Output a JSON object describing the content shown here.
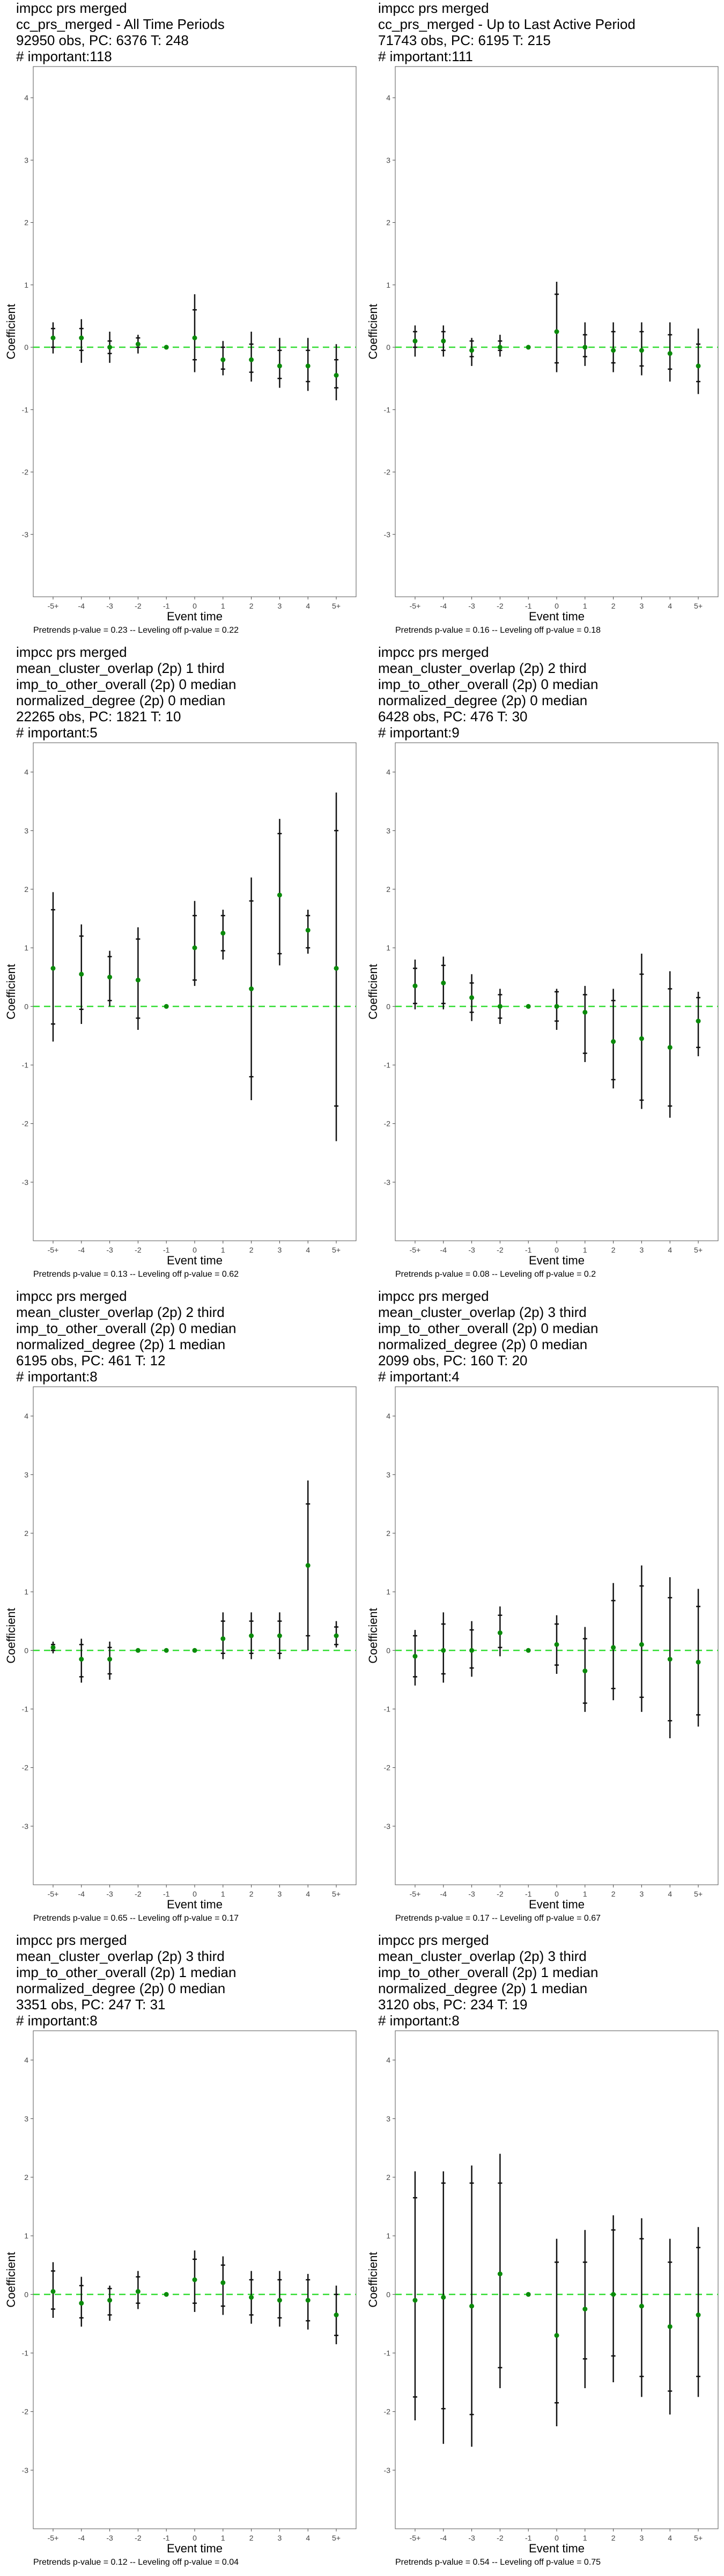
{
  "chart_data": [
    {
      "type": "scatter",
      "title_lines": [
        "impcc prs merged",
        "cc_prs_merged - All Time Periods",
        "92950 obs, PC: 6376 T: 248",
        "# important:118"
      ],
      "xlabel": "Event time",
      "ylabel": "Coefficient",
      "categories": [
        "-5+",
        "-4",
        "-3",
        "-2",
        "-1",
        "0",
        "1",
        "2",
        "3",
        "4",
        "5+"
      ],
      "ylim": [
        -4,
        4.5
      ],
      "yticks": [
        -3,
        -2,
        -1,
        0,
        1,
        2,
        3,
        4
      ],
      "reference_line": 0,
      "estimates": [
        0.15,
        0.15,
        0.0,
        0.05,
        0.0,
        0.15,
        -0.2,
        -0.2,
        -0.3,
        -0.3,
        -0.45
      ],
      "ci_low": [
        -0.1,
        -0.25,
        -0.25,
        -0.1,
        0.0,
        -0.4,
        -0.45,
        -0.55,
        -0.65,
        -0.7,
        -0.85
      ],
      "ci_high": [
        0.4,
        0.45,
        0.25,
        0.2,
        0.0,
        0.85,
        0.1,
        0.25,
        0.15,
        0.15,
        0.05
      ],
      "inner_low": [
        0.0,
        -0.05,
        -0.1,
        0.0,
        0.0,
        -0.2,
        -0.35,
        -0.4,
        -0.5,
        -0.55,
        -0.65
      ],
      "inner_high": [
        0.3,
        0.3,
        0.1,
        0.15,
        0.0,
        0.6,
        0.0,
        0.05,
        -0.05,
        -0.05,
        -0.2
      ],
      "footnote": "Pretrends p-value = 0.23 -- Leveling off p-value = 0.22"
    },
    {
      "type": "scatter",
      "title_lines": [
        "impcc prs merged",
        "cc_prs_merged - Up to Last Active Period",
        "71743 obs, PC: 6195 T: 215",
        "# important:111"
      ],
      "xlabel": "Event time",
      "ylabel": "Coefficient",
      "categories": [
        "-5+",
        "-4",
        "-3",
        "-2",
        "-1",
        "0",
        "1",
        "2",
        "3",
        "4",
        "5+"
      ],
      "ylim": [
        -4,
        4.5
      ],
      "yticks": [
        -3,
        -2,
        -1,
        0,
        1,
        2,
        3,
        4
      ],
      "reference_line": 0,
      "estimates": [
        0.1,
        0.1,
        -0.05,
        0.0,
        0.0,
        0.25,
        0.0,
        -0.05,
        -0.05,
        -0.1,
        -0.3
      ],
      "ci_low": [
        -0.15,
        -0.15,
        -0.3,
        -0.15,
        0.0,
        -0.4,
        -0.3,
        -0.4,
        -0.45,
        -0.55,
        -0.75
      ],
      "ci_high": [
        0.35,
        0.35,
        0.15,
        0.2,
        0.0,
        1.05,
        0.4,
        0.4,
        0.4,
        0.4,
        0.3
      ],
      "inner_low": [
        0.0,
        -0.05,
        -0.15,
        -0.05,
        0.0,
        -0.25,
        -0.15,
        -0.25,
        -0.3,
        -0.35,
        -0.55
      ],
      "inner_high": [
        0.25,
        0.25,
        0.1,
        0.1,
        0.0,
        0.85,
        0.2,
        0.25,
        0.25,
        0.2,
        0.05
      ],
      "footnote": "Pretrends p-value = 0.16 -- Leveling off p-value = 0.18"
    },
    {
      "type": "scatter",
      "title_lines": [
        "impcc prs merged",
        "mean_cluster_overlap (2p) 1 third",
        "imp_to_other_overall (2p) 0 median",
        "normalized_degree (2p) 0 median",
        "22265 obs, PC: 1821 T: 10",
        "# important:5"
      ],
      "xlabel": "Event time",
      "ylabel": "Coefficient",
      "categories": [
        "-5+",
        "-4",
        "-3",
        "-2",
        "-1",
        "0",
        "1",
        "2",
        "3",
        "4",
        "5+"
      ],
      "ylim": [
        -4,
        4.5
      ],
      "yticks": [
        -3,
        -2,
        -1,
        0,
        1,
        2,
        3,
        4
      ],
      "reference_line": 0,
      "estimates": [
        0.65,
        0.55,
        0.5,
        0.45,
        0.0,
        1.0,
        1.25,
        0.3,
        1.9,
        1.3,
        0.65
      ],
      "ci_low": [
        -0.6,
        -0.3,
        0.0,
        -0.4,
        0.0,
        0.35,
        0.8,
        -1.6,
        0.7,
        0.9,
        -2.3
      ],
      "ci_high": [
        1.95,
        1.4,
        0.95,
        1.35,
        0.0,
        1.8,
        1.65,
        2.2,
        3.2,
        1.65,
        3.65
      ],
      "inner_low": [
        -0.3,
        -0.05,
        0.1,
        -0.2,
        0.0,
        0.45,
        0.95,
        -1.2,
        0.9,
        1.0,
        -1.7
      ],
      "inner_high": [
        1.65,
        1.2,
        0.85,
        1.15,
        0.0,
        1.55,
        1.55,
        1.8,
        2.95,
        1.55,
        3.0
      ],
      "footnote": "Pretrends p-value = 0.13 -- Leveling off p-value = 0.62"
    },
    {
      "type": "scatter",
      "title_lines": [
        "impcc prs merged",
        "mean_cluster_overlap (2p) 2 third",
        "imp_to_other_overall (2p) 0 median",
        "normalized_degree (2p) 0 median",
        "6428 obs, PC: 476 T: 30",
        "# important:9"
      ],
      "xlabel": "Event time",
      "ylabel": "Coefficient",
      "categories": [
        "-5+",
        "-4",
        "-3",
        "-2",
        "-1",
        "0",
        "1",
        "2",
        "3",
        "4",
        "5+"
      ],
      "ylim": [
        -4,
        4.5
      ],
      "yticks": [
        -3,
        -2,
        -1,
        0,
        1,
        2,
        3,
        4
      ],
      "reference_line": 0,
      "estimates": [
        0.35,
        0.4,
        0.15,
        0.0,
        0.0,
        0.0,
        -0.1,
        -0.6,
        -0.55,
        -0.7,
        -0.25
      ],
      "ci_low": [
        -0.05,
        -0.05,
        -0.25,
        -0.3,
        0.0,
        -0.4,
        -0.95,
        -1.4,
        -1.75,
        -1.9,
        -0.85
      ],
      "ci_high": [
        0.8,
        0.85,
        0.55,
        0.3,
        0.0,
        0.3,
        0.35,
        0.3,
        0.9,
        0.6,
        0.25
      ],
      "inner_low": [
        0.05,
        0.05,
        -0.1,
        -0.2,
        0.0,
        -0.25,
        -0.8,
        -1.25,
        -1.6,
        -1.7,
        -0.7
      ],
      "inner_high": [
        0.65,
        0.7,
        0.4,
        0.2,
        0.0,
        0.25,
        0.2,
        0.1,
        0.55,
        0.3,
        0.15
      ],
      "footnote": "Pretrends p-value = 0.08 -- Leveling off p-value = 0.2"
    },
    {
      "type": "scatter",
      "title_lines": [
        "impcc prs merged",
        "mean_cluster_overlap (2p) 2 third",
        "imp_to_other_overall (2p) 0 median",
        "normalized_degree (2p) 1 median",
        "6195 obs, PC: 461 T: 12",
        "# important:8"
      ],
      "xlabel": "Event time",
      "ylabel": "Coefficient",
      "categories": [
        "-5+",
        "-4",
        "-3",
        "-2",
        "-1",
        "0",
        "1",
        "2",
        "3",
        "4",
        "5+"
      ],
      "ylim": [
        -4,
        4.5
      ],
      "yticks": [
        -3,
        -2,
        -1,
        0,
        1,
        2,
        3,
        4
      ],
      "reference_line": 0,
      "estimates": [
        0.05,
        -0.15,
        -0.15,
        0.0,
        0.0,
        0.0,
        0.2,
        0.25,
        0.25,
        1.45,
        0.25
      ],
      "ci_low": [
        -0.05,
        -0.55,
        -0.5,
        0.0,
        0.0,
        0.0,
        -0.15,
        -0.15,
        -0.15,
        0.0,
        0.05
      ],
      "ci_high": [
        0.15,
        0.2,
        0.15,
        0.0,
        0.0,
        0.0,
        0.65,
        0.65,
        0.65,
        2.9,
        0.5
      ],
      "inner_low": [
        0.0,
        -0.45,
        -0.4,
        0.0,
        0.0,
        0.0,
        -0.05,
        -0.05,
        -0.05,
        0.25,
        0.1
      ],
      "inner_high": [
        0.1,
        0.1,
        0.05,
        0.0,
        0.0,
        0.0,
        0.5,
        0.5,
        0.5,
        2.5,
        0.4
      ],
      "footnote": "Pretrends p-value = 0.65 -- Leveling off p-value = 0.17"
    },
    {
      "type": "scatter",
      "title_lines": [
        "impcc prs merged",
        "mean_cluster_overlap (2p) 3 third",
        "imp_to_other_overall (2p) 0 median",
        "normalized_degree (2p) 0 median",
        "2099 obs, PC: 160 T: 20",
        "# important:4"
      ],
      "xlabel": "Event time",
      "ylabel": "Coefficient",
      "categories": [
        "-5+",
        "-4",
        "-3",
        "-2",
        "-1",
        "0",
        "1",
        "2",
        "3",
        "4",
        "5+"
      ],
      "ylim": [
        -4,
        4.5
      ],
      "yticks": [
        -3,
        -2,
        -1,
        0,
        1,
        2,
        3,
        4
      ],
      "reference_line": 0,
      "estimates": [
        -0.1,
        0.0,
        0.0,
        0.3,
        0.0,
        0.1,
        -0.35,
        0.05,
        0.1,
        -0.15,
        -0.2
      ],
      "ci_low": [
        -0.6,
        -0.55,
        -0.45,
        -0.1,
        0.0,
        -0.4,
        -1.05,
        -0.85,
        -1.05,
        -1.5,
        -1.3
      ],
      "ci_high": [
        0.35,
        0.65,
        0.5,
        0.75,
        0.0,
        0.6,
        0.4,
        1.15,
        1.45,
        1.25,
        1.05
      ],
      "inner_low": [
        -0.45,
        -0.4,
        -0.3,
        0.05,
        0.0,
        -0.25,
        -0.9,
        -0.65,
        -0.8,
        -1.2,
        -1.1
      ],
      "inner_high": [
        0.25,
        0.45,
        0.35,
        0.6,
        0.0,
        0.45,
        0.2,
        0.85,
        1.1,
        0.9,
        0.75
      ],
      "footnote": "Pretrends p-value = 0.17 -- Leveling off p-value = 0.67"
    },
    {
      "type": "scatter",
      "title_lines": [
        "impcc prs merged",
        "mean_cluster_overlap (2p) 3 third",
        "imp_to_other_overall (2p) 1 median",
        "normalized_degree (2p) 0 median",
        "3351 obs, PC: 247 T: 31",
        "# important:8"
      ],
      "xlabel": "Event time",
      "ylabel": "Coefficient",
      "categories": [
        "-5+",
        "-4",
        "-3",
        "-2",
        "-1",
        "0",
        "1",
        "2",
        "3",
        "4",
        "5+"
      ],
      "ylim": [
        -4,
        4.5
      ],
      "yticks": [
        -3,
        -2,
        -1,
        0,
        1,
        2,
        3,
        4
      ],
      "reference_line": 0,
      "estimates": [
        0.05,
        -0.15,
        -0.1,
        0.05,
        0.0,
        0.25,
        0.2,
        -0.05,
        -0.1,
        -0.1,
        -0.35
      ],
      "ci_low": [
        -0.4,
        -0.55,
        -0.45,
        -0.25,
        0.0,
        -0.3,
        -0.35,
        -0.5,
        -0.55,
        -0.6,
        -0.85
      ],
      "ci_high": [
        0.55,
        0.3,
        0.15,
        0.4,
        0.0,
        0.75,
        0.65,
        0.4,
        0.4,
        0.35,
        0.15
      ],
      "inner_low": [
        -0.25,
        -0.4,
        -0.35,
        -0.15,
        0.0,
        -0.15,
        -0.2,
        -0.35,
        -0.4,
        -0.45,
        -0.7
      ],
      "inner_high": [
        0.4,
        0.15,
        0.1,
        0.3,
        0.0,
        0.6,
        0.5,
        0.25,
        0.25,
        0.25,
        0.0
      ],
      "footnote": "Pretrends p-value = 0.12 -- Leveling off p-value = 0.04"
    },
    {
      "type": "scatter",
      "title_lines": [
        "impcc prs merged",
        "mean_cluster_overlap (2p) 3 third",
        "imp_to_other_overall (2p) 1 median",
        "normalized_degree (2p) 1 median",
        "3120 obs, PC: 234 T: 19",
        "# important:8"
      ],
      "xlabel": "Event time",
      "ylabel": "Coefficient",
      "categories": [
        "-5+",
        "-4",
        "-3",
        "-2",
        "-1",
        "0",
        "1",
        "2",
        "3",
        "4",
        "5+"
      ],
      "ylim": [
        -4,
        4.5
      ],
      "yticks": [
        -3,
        -2,
        -1,
        0,
        1,
        2,
        3,
        4
      ],
      "reference_line": 0,
      "estimates": [
        -0.1,
        -0.05,
        -0.2,
        0.35,
        0.0,
        -0.7,
        -0.25,
        0.0,
        -0.2,
        -0.55,
        -0.35
      ],
      "ci_low": [
        -2.15,
        -2.55,
        -2.6,
        -1.6,
        0.0,
        -2.25,
        -1.6,
        -1.5,
        -1.75,
        -2.05,
        -1.75
      ],
      "ci_high": [
        2.1,
        2.1,
        2.2,
        2.4,
        0.0,
        0.95,
        1.1,
        1.35,
        1.3,
        0.95,
        1.15
      ],
      "inner_low": [
        -1.75,
        -1.95,
        -2.05,
        -1.25,
        0.0,
        -1.85,
        -1.1,
        -1.05,
        -1.4,
        -1.65,
        -1.4
      ],
      "inner_high": [
        1.65,
        1.9,
        1.9,
        1.9,
        0.0,
        0.55,
        0.55,
        1.1,
        0.95,
        0.55,
        0.8
      ],
      "footnote": "Pretrends p-value = 0.54 -- Leveling off p-value = 0.75"
    }
  ]
}
